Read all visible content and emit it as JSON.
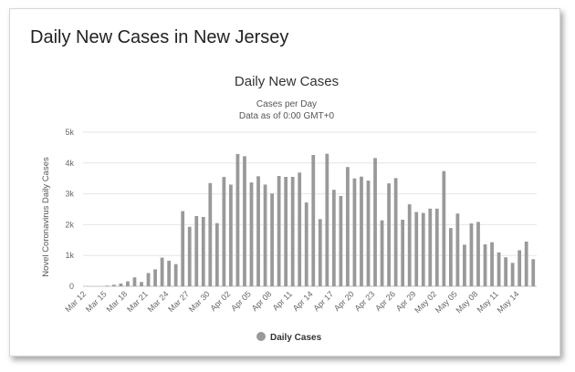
{
  "page_title": "Daily New Cases in New Jersey",
  "chart_data": {
    "type": "bar",
    "title": "Daily New Cases",
    "subtitle": [
      "Cases per Day",
      "Data as of 0:00 GMT+0"
    ],
    "xlabel": "",
    "ylabel": "Novel Coronavirus Daily Cases",
    "ylim": [
      0,
      5000
    ],
    "yticks": [
      0,
      1000,
      2000,
      3000,
      4000,
      5000
    ],
    "ytick_labels": [
      "0",
      "1k",
      "2k",
      "3k",
      "4k",
      "5k"
    ],
    "grid": true,
    "legend_position": "bottom",
    "color": "#999999",
    "series": [
      {
        "name": "Daily Cases",
        "values": [
          0,
          0,
          0,
          20,
          50,
          90,
          160,
          290,
          140,
          430,
          550,
          930,
          830,
          720,
          2440,
          1930,
          2280,
          2250,
          3350,
          2050,
          3550,
          3300,
          4290,
          4220,
          3370,
          3570,
          3300,
          3010,
          3580,
          3550,
          3550,
          3690,
          2720,
          4260,
          2180,
          4300,
          3130,
          2930,
          3870,
          3500,
          3560,
          3430,
          4160,
          2140,
          3340,
          3510,
          2160,
          2660,
          2410,
          2380,
          2520,
          2520,
          3740,
          1890,
          2360,
          1350,
          2040,
          2090,
          1360,
          1430,
          1100,
          940,
          760,
          1170,
          1450,
          880
        ]
      }
    ],
    "categories": [
      "Mar 12",
      "Mar 13",
      "Mar 14",
      "Mar 15",
      "Mar 16",
      "Mar 17",
      "Mar 18",
      "Mar 19",
      "Mar 20",
      "Mar 21",
      "Mar 22",
      "Mar 23",
      "Mar 24",
      "Mar 25",
      "Mar 26",
      "Mar 27",
      "Mar 28",
      "Mar 29",
      "Mar 30",
      "Mar 31",
      "Apr 01",
      "Apr 02",
      "Apr 03",
      "Apr 04",
      "Apr 05",
      "Apr 06",
      "Apr 07",
      "Apr 08",
      "Apr 09",
      "Apr 10",
      "Apr 11",
      "Apr 12",
      "Apr 13",
      "Apr 14",
      "Apr 15",
      "Apr 16",
      "Apr 17",
      "Apr 18",
      "Apr 19",
      "Apr 20",
      "Apr 21",
      "Apr 22",
      "Apr 23",
      "Apr 24",
      "Apr 25",
      "Apr 26",
      "Apr 27",
      "Apr 28",
      "Apr 29",
      "Apr 30",
      "May 01",
      "May 02",
      "May 03",
      "May 04",
      "May 05",
      "May 06",
      "May 07",
      "May 08",
      "May 09",
      "May 10",
      "May 11",
      "May 12",
      "May 13",
      "May 14",
      "May 15",
      "May 16"
    ],
    "xtick_labels": [
      "Mar 12",
      "Mar 15",
      "Mar 18",
      "Mar 21",
      "Mar 24",
      "Mar 27",
      "Mar 30",
      "Apr 02",
      "Apr 05",
      "Apr 08",
      "Apr 11",
      "Apr 14",
      "Apr 17",
      "Apr 20",
      "Apr 23",
      "Apr 26",
      "Apr 29",
      "May 02",
      "May 05",
      "May 08",
      "May 11",
      "May 14"
    ]
  }
}
